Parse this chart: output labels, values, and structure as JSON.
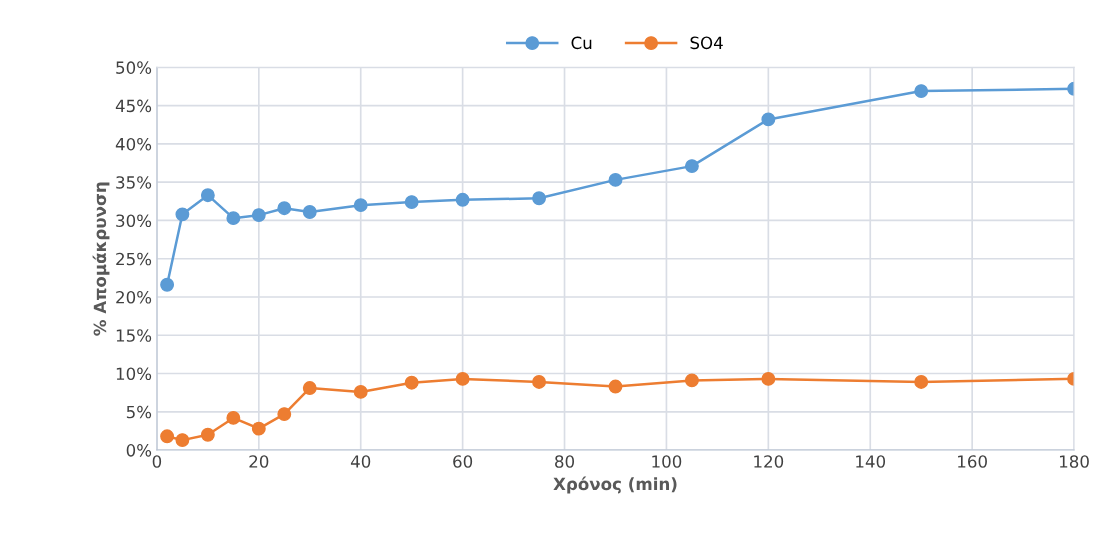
{
  "chart_data": {
    "type": "line",
    "xlabel": "Χρόνος (min)",
    "ylabel": "% Απομάκρυνση",
    "x": [
      2,
      5,
      10,
      15,
      20,
      25,
      30,
      40,
      50,
      60,
      75,
      90,
      105,
      120,
      150,
      180
    ],
    "series": [
      {
        "name": "Cu",
        "color": "#5b9bd5",
        "values": [
          21.6,
          30.8,
          33.3,
          30.3,
          30.7,
          31.6,
          31.1,
          32.0,
          32.4,
          32.7,
          32.9,
          35.3,
          37.1,
          43.2,
          46.9,
          47.2
        ]
      },
      {
        "name": "SO4",
        "color": "#ed7d31",
        "values": [
          1.8,
          1.3,
          2.0,
          4.2,
          2.8,
          4.7,
          8.1,
          7.6,
          8.8,
          9.3,
          8.9,
          8.3,
          9.1,
          9.3,
          8.9,
          9.3
        ]
      }
    ],
    "xlim": [
      0,
      180
    ],
    "xticks": [
      0,
      20,
      40,
      60,
      80,
      100,
      120,
      140,
      160,
      180
    ],
    "ylim": [
      0,
      50
    ],
    "yticks": [
      {
        "value": 0,
        "label": "0%"
      },
      {
        "value": 5,
        "label": "5%"
      },
      {
        "value": 10,
        "label": "10%"
      },
      {
        "value": 15,
        "label": "15%"
      },
      {
        "value": 20,
        "label": "20%"
      },
      {
        "value": 25,
        "label": "25%"
      },
      {
        "value": 30,
        "label": "30%"
      },
      {
        "value": 35,
        "label": "35%"
      },
      {
        "value": 40,
        "label": "40%"
      },
      {
        "value": 45,
        "label": "45%"
      },
      {
        "value": 50,
        "label": "50%"
      }
    ],
    "grid": true,
    "legend": "top",
    "marker": "circle",
    "line_style": "solid"
  }
}
